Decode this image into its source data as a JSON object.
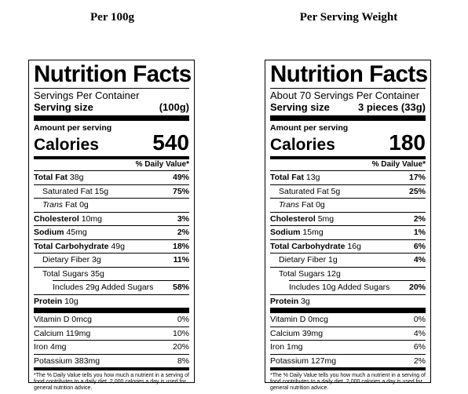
{
  "headings": {
    "left": "Per 100g",
    "right": "Per Serving Weight"
  },
  "labels": [
    {
      "title": "Nutrition Facts",
      "servings_per_container": "Servings Per Container",
      "serving_size_label": "Serving size",
      "serving_size_value": "(100g)",
      "amount_per_serving": "Amount per serving",
      "calories_label": "Calories",
      "calories_value": "540",
      "dv_header": "% Daily Value*",
      "total_fat": {
        "label": "Total Fat",
        "amount": "38g",
        "pct": "49%"
      },
      "saturated_fat": {
        "label": "Saturated Fat 15g",
        "pct": "75%"
      },
      "trans_fat": {
        "label": "Trans",
        "rest": "Fat 0g"
      },
      "cholesterol": {
        "label": "Cholesterol",
        "amount": "10mg",
        "pct": "3%"
      },
      "sodium": {
        "label": "Sodium",
        "amount": "45mg",
        "pct": "2%"
      },
      "total_carb": {
        "label": "Total Carbohydrate",
        "amount": "49g",
        "pct": "18%"
      },
      "dietary_fiber": {
        "label": "Dietary Fiber 3g",
        "pct": "11%"
      },
      "total_sugars": {
        "label": "Total Sugars 35g"
      },
      "added_sugars": {
        "label": "Includes 29g Added Sugars",
        "pct": "58%"
      },
      "protein": {
        "label": "Protein",
        "amount": "10g"
      },
      "vitamin_d": {
        "label": "Vitamin D 0mcg",
        "pct": "0%"
      },
      "calcium": {
        "label": "Calcium 119mg",
        "pct": "10%"
      },
      "iron": {
        "label": "Iron 4mg",
        "pct": "20%"
      },
      "potassium": {
        "label": "Potassium 383mg",
        "pct": "8%"
      },
      "footnote": "*The % Daily Value tells you how much a nutrient in a serving of food contributes to a daily diet. 2,000 calories a day is used for general nutrition advice."
    },
    {
      "title": "Nutrition Facts",
      "servings_per_container": "About 70 Servings Per Container",
      "serving_size_label": "Serving size",
      "serving_size_value": "3 pieces (33g)",
      "amount_per_serving": "Amount per serving",
      "calories_label": "Calories",
      "calories_value": "180",
      "dv_header": "% Daily Value*",
      "total_fat": {
        "label": "Total Fat",
        "amount": "13g",
        "pct": "17%"
      },
      "saturated_fat": {
        "label": "Saturated Fat 5g",
        "pct": "25%"
      },
      "trans_fat": {
        "label": "Trans",
        "rest": "Fat 0g"
      },
      "cholesterol": {
        "label": "Cholesterol",
        "amount": "5mg",
        "pct": "2%"
      },
      "sodium": {
        "label": "Sodium",
        "amount": "15mg",
        "pct": "1%"
      },
      "total_carb": {
        "label": "Total Carbohydrate",
        "amount": "16g",
        "pct": "6%"
      },
      "dietary_fiber": {
        "label": "Dietary Fiber 1g",
        "pct": "4%"
      },
      "total_sugars": {
        "label": "Total Sugars 12g"
      },
      "added_sugars": {
        "label": "Includes 10g Added Sugars",
        "pct": "20%"
      },
      "protein": {
        "label": "Protein",
        "amount": "3g"
      },
      "vitamin_d": {
        "label": "Vitamin D 0mcg",
        "pct": "0%"
      },
      "calcium": {
        "label": "Calcium 39mg",
        "pct": "4%"
      },
      "iron": {
        "label": "Iron 1mg",
        "pct": "6%"
      },
      "potassium": {
        "label": "Potassium 127mg",
        "pct": "2%"
      },
      "footnote": "*The % Daily Value tells you how much a nutrient in a serving of food contributes to a daily diet. 2,000 calories a day is used for general nutrition advice."
    }
  ]
}
